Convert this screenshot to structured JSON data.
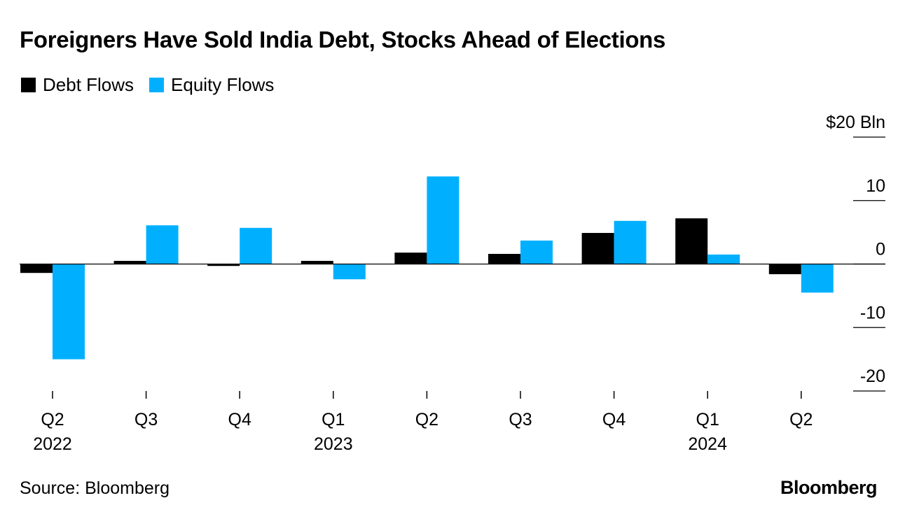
{
  "title": "Foreigners Have Sold India Debt, Stocks Ahead of Elections",
  "legend": [
    {
      "label": "Debt Flows",
      "color": "#000000"
    },
    {
      "label": "Equity Flows",
      "color": "#00b0ff"
    }
  ],
  "source": "Source: Bloomberg",
  "brand": "Bloomberg",
  "chart_data": {
    "type": "bar",
    "title": "Foreigners Have Sold India Debt, Stocks Ahead of Elections",
    "ylabel": "$ Bln",
    "y_unit_label": "$20 Bln",
    "ylim": [
      -20,
      20
    ],
    "yticks": [
      20,
      10,
      0,
      -10,
      -20
    ],
    "ytick_labels": [
      "$20 Bln",
      "10",
      "0",
      "-10",
      "-20"
    ],
    "categories": [
      "Q2 2022",
      "Q3",
      "Q4",
      "Q1 2023",
      "Q2",
      "Q3",
      "Q4",
      "Q1 2024",
      "Q2"
    ],
    "category_lines": [
      [
        "Q2",
        "2022"
      ],
      [
        "Q3"
      ],
      [
        "Q4"
      ],
      [
        "Q1",
        "2023"
      ],
      [
        "Q2"
      ],
      [
        "Q3"
      ],
      [
        "Q4"
      ],
      [
        "Q1",
        "2024"
      ],
      [
        "Q2"
      ]
    ],
    "series": [
      {
        "name": "Debt Flows",
        "color": "#000000",
        "values": [
          -1.4,
          0.5,
          -0.3,
          0.5,
          1.8,
          1.6,
          4.9,
          7.2,
          -1.6
        ]
      },
      {
        "name": "Equity Flows",
        "color": "#00b0ff",
        "values": [
          -15.0,
          6.1,
          5.7,
          -2.4,
          13.8,
          3.7,
          6.8,
          1.5,
          -4.5
        ]
      }
    ]
  }
}
